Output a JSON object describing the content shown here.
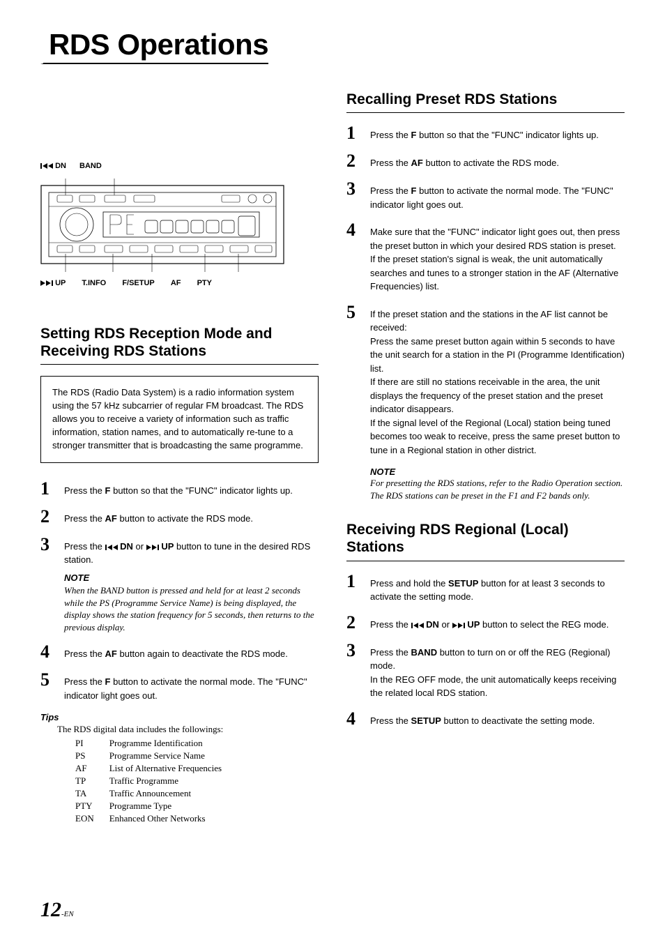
{
  "page_title": "RDS Operations",
  "diagram": {
    "top_labels": [
      "DN",
      "BAND"
    ],
    "top_prefix_icon": "seek-back",
    "bottom_labels": [
      "UP",
      "T.INFO",
      "F/SETUP",
      "AF",
      "PTY"
    ],
    "bottom_prefix_icon": "seek-fwd"
  },
  "left": {
    "heading": "Setting RDS Reception Mode and Receiving RDS Stations",
    "info_box": "The RDS (Radio Data System) is a radio information system using the 57 kHz subcarrier of regular FM broadcast. The RDS allows you to receive a variety of information such as traffic information, station names, and to automatically re-tune to a stronger transmitter that is broadcasting the same programme.",
    "steps": [
      {
        "num": "1",
        "pre": "Press the ",
        "bold": "F",
        "post": " button so that the \"FUNC\" indicator lights up."
      },
      {
        "num": "2",
        "pre": "Press the ",
        "bold": "AF",
        "post": " button to activate the RDS mode."
      },
      {
        "num": "3",
        "pre": "Press the ",
        "seek_back": true,
        "bold1": " DN",
        "mid": " or ",
        "seek_fwd": true,
        "bold2": " UP",
        "post": " button to tune in the desired RDS station.",
        "note": "When the BAND button is pressed and held for at least 2 seconds while the PS (Programme Service Name) is being displayed, the display shows the station frequency for 5 seconds, then returns to the previous display."
      },
      {
        "num": "4",
        "pre": "Press the ",
        "bold": "AF",
        "post": " button again to deactivate the RDS mode."
      },
      {
        "num": "5",
        "pre": "Press the ",
        "bold": "F",
        "post": " button to activate the normal mode. The \"FUNC\" indicator light goes out."
      }
    ],
    "tips_label": "Tips",
    "tips_intro": "The RDS digital data includes the followings:",
    "tips_rows": [
      [
        "PI",
        "Programme Identification"
      ],
      [
        "PS",
        "Programme Service Name"
      ],
      [
        "AF",
        "List of Alternative Frequencies"
      ],
      [
        "TP",
        "Traffic Programme"
      ],
      [
        "TA",
        "Traffic Announcement"
      ],
      [
        "PTY",
        "Programme Type"
      ],
      [
        "EON",
        "Enhanced Other Networks"
      ]
    ]
  },
  "right": {
    "heading1": "Recalling Preset RDS Stations",
    "steps1": [
      {
        "num": "1",
        "pre": "Press the ",
        "bold": "F",
        "post": " button so that the \"FUNC\" indicator lights up."
      },
      {
        "num": "2",
        "pre": "Press the ",
        "bold": "AF",
        "post": " button to activate the RDS mode."
      },
      {
        "num": "3",
        "pre": "Press the ",
        "bold": "F",
        "post": " button to activate the normal mode. The \"FUNC\" indicator light goes out."
      },
      {
        "num": "4",
        "text": "Make sure that the \"FUNC\" indicator light goes out, then press the preset button in which your desired RDS station is preset.\nIf the preset station's signal is weak, the unit automatically searches and tunes to a stronger station in the AF (Alternative Frequencies) list."
      },
      {
        "num": "5",
        "text": "If the preset station and the stations in the AF list cannot be received:\nPress the same preset button again within 5 seconds to have the unit search for a station in the PI (Programme Identification) list.\nIf there are still no stations receivable in the area, the unit displays the frequency of the preset station and the preset indicator disappears.\nIf the signal level of the Regional (Local) station being tuned becomes too weak to receive, press the same preset button to tune in a Regional station in other district."
      }
    ],
    "note1_label": "NOTE",
    "note1_text": "For presetting the RDS stations, refer to the Radio Operation section. The RDS stations can be preset in the F1 and F2 bands only.",
    "heading2": "Receiving RDS Regional (Local) Stations",
    "steps2": [
      {
        "num": "1",
        "pre": "Press and hold the ",
        "bold": "SETUP",
        "post": " button for at least 3 seconds to activate the setting mode."
      },
      {
        "num": "2",
        "pre": "Press the ",
        "seek_back": true,
        "bold1": " DN",
        "mid": " or ",
        "seek_fwd": true,
        "bold2": " UP",
        "post": " button to select the REG mode."
      },
      {
        "num": "3",
        "pre": "Press the ",
        "bold": "BAND",
        "post": " button to turn on or off the REG (Regional) mode.\nIn the REG OFF mode, the unit automatically keeps receiving the related local RDS station."
      },
      {
        "num": "4",
        "pre": "Press the ",
        "bold": "SETUP",
        "post": " button to deactivate the setting mode."
      }
    ]
  },
  "page_number": "12",
  "page_number_suffix": "-EN"
}
